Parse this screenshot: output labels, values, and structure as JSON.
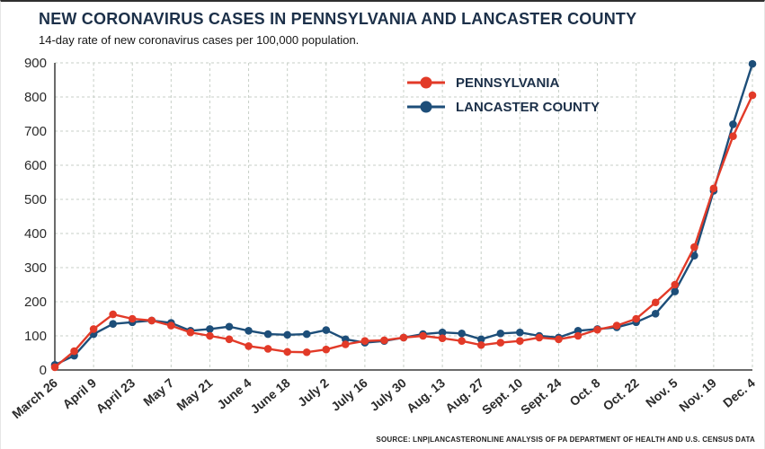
{
  "header": {
    "title": "NEW CORONAVIRUS CASES IN PENNSYLVANIA AND LANCASTER COUNTY",
    "subtitle": "14-day rate of new coronavirus cases per 100,000 population."
  },
  "footer": {
    "source": "SOURCE: LNP|LANCASTERONLINE ANALYSIS OF PA DEPARTMENT OF HEALTH AND U.S. CENSUS DATA"
  },
  "colors": {
    "title": "#1c3049",
    "grid": "#c7cfc7",
    "axis": "#3a3a3a",
    "text": "#2b2b2b"
  },
  "chart_data": {
    "type": "line",
    "title": "NEW CORONAVIRUS CASES IN PENNSYLVANIA AND LANCASTER COUNTY",
    "subtitle": "14-day rate of new coronavirus cases per 100,000 population.",
    "ylim": [
      0,
      900
    ],
    "ytick_step": 100,
    "grid": "dashed",
    "legend_position": "top-center-inside",
    "points_are_weekly": true,
    "label_every": 2,
    "x_labels": [
      "March 26",
      "April 9",
      "April 23",
      "May 7",
      "May 21",
      "June 4",
      "June 18",
      "July 2",
      "July 16",
      "July 30",
      "Aug. 13",
      "Aug. 27",
      "Sept. 10",
      "Sept. 24",
      "Oct. 8",
      "Oct. 22",
      "Nov. 5",
      "Nov. 19",
      "Dec. 4"
    ],
    "series": [
      {
        "name": "PENNSYLVANIA",
        "color": "#e23a28",
        "values": [
          8,
          55,
          120,
          163,
          150,
          145,
          130,
          110,
          100,
          90,
          70,
          62,
          53,
          52,
          60,
          75,
          85,
          87,
          95,
          100,
          93,
          85,
          73,
          80,
          85,
          95,
          90,
          100,
          118,
          130,
          150,
          198,
          250,
          360,
          532,
          685,
          805
        ]
      },
      {
        "name": "LANCASTER COUNTY",
        "color": "#1d4e79",
        "values": [
          15,
          42,
          105,
          135,
          140,
          145,
          138,
          115,
          120,
          127,
          115,
          105,
          103,
          105,
          117,
          90,
          80,
          85,
          95,
          105,
          110,
          107,
          90,
          107,
          110,
          100,
          95,
          115,
          120,
          125,
          140,
          165,
          230,
          335,
          525,
          720,
          897
        ]
      }
    ]
  }
}
